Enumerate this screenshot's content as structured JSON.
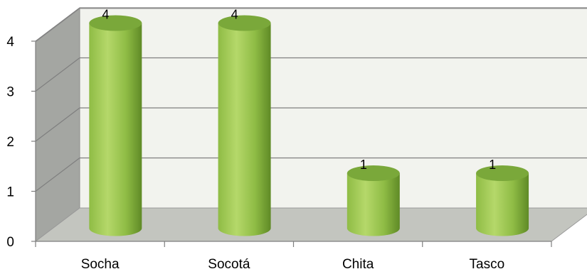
{
  "chart_data": {
    "type": "bar",
    "style": "3d-cylinder",
    "categories": [
      "Socha",
      "Socotá",
      "Chita",
      "Tasco"
    ],
    "values": [
      4,
      4,
      1,
      1
    ],
    "data_labels": [
      "4",
      "4",
      "1",
      "1"
    ],
    "y_ticks": [
      "0",
      "1",
      "2",
      "3",
      "4"
    ],
    "ylim": [
      0,
      4
    ],
    "grid": true,
    "legend": "none",
    "colors": {
      "bar_light": "#b5d86a",
      "bar_mid": "#8fbc45",
      "bar_dark": "#5f8a26",
      "bar_top": "#7aa83a",
      "back_wall": "#f2f3ee",
      "side_wall": "#a4a6a2",
      "floor": "#c3c5bf",
      "gridline": "#7f7f7f"
    }
  }
}
